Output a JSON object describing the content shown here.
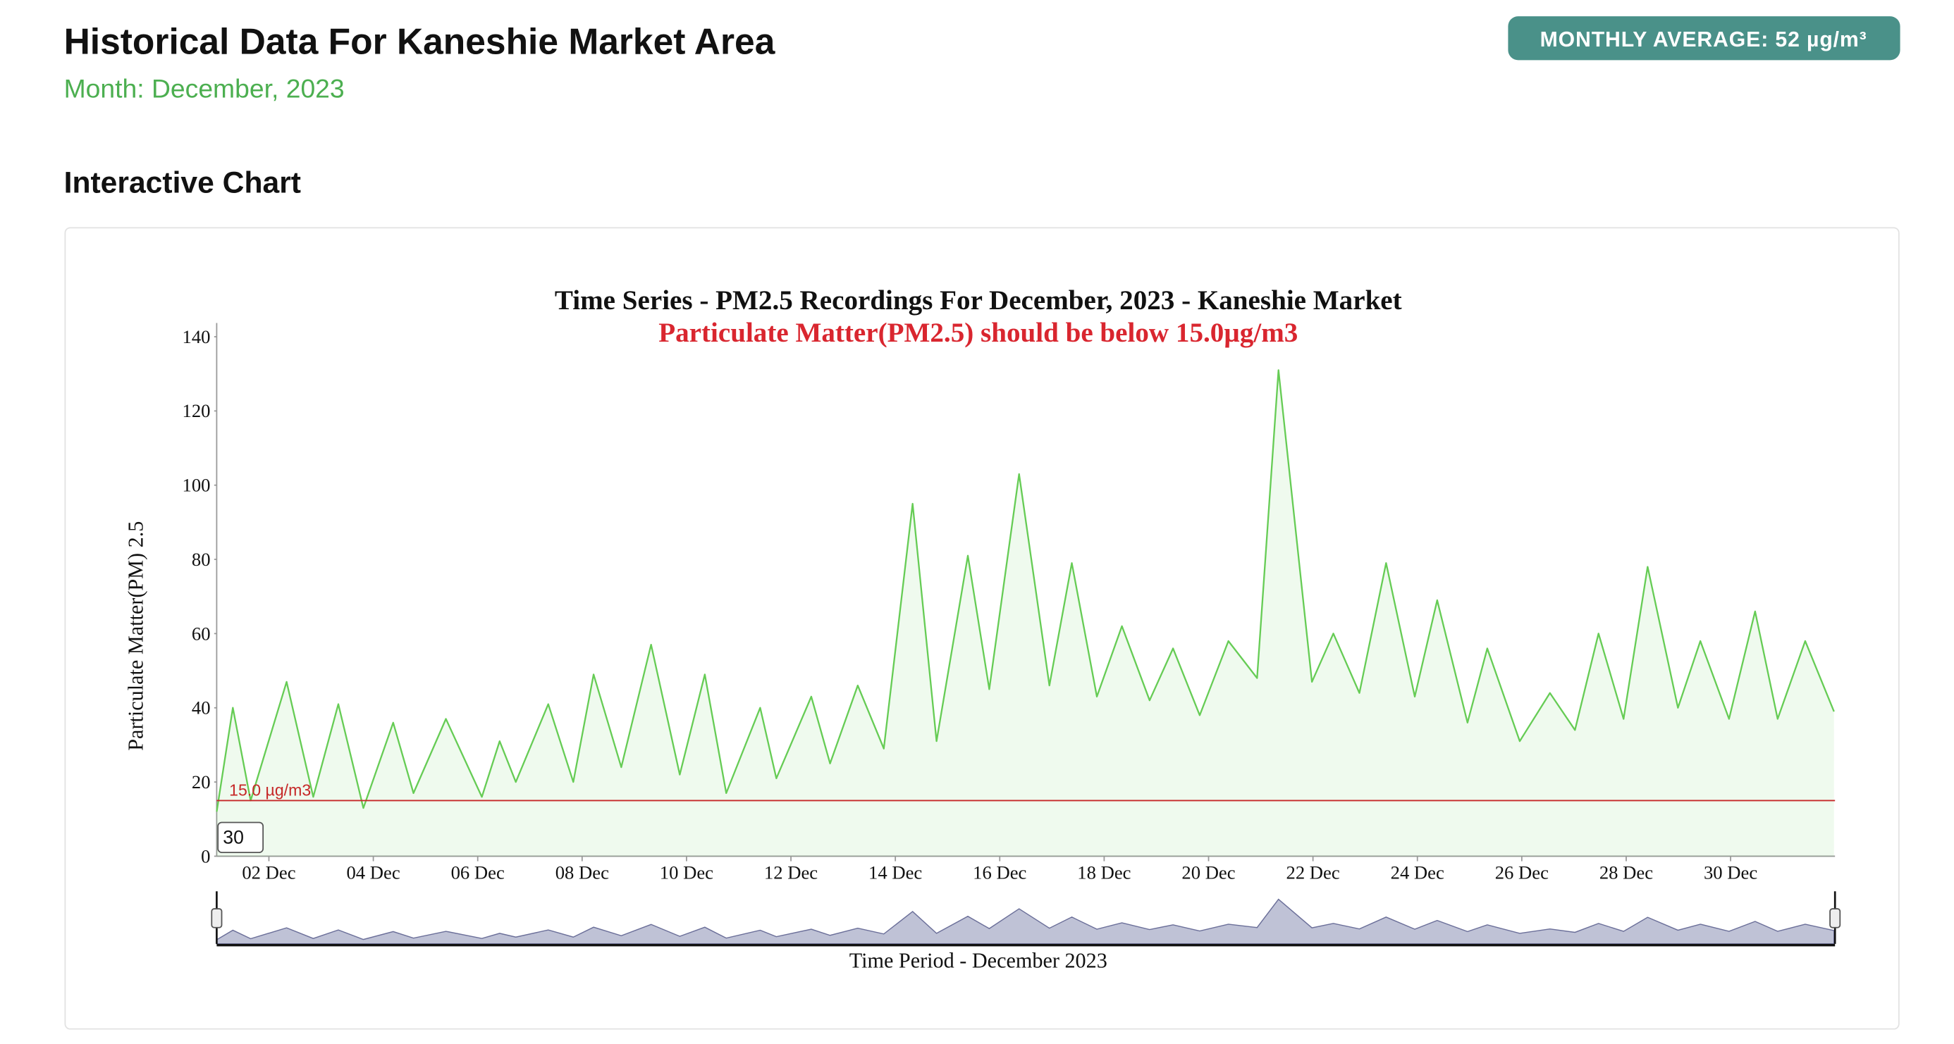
{
  "header": {
    "title": "Historical Data For Kaneshie Market Area",
    "month": "Month: December, 2023",
    "badge": "MONTHLY AVERAGE: 52 µg/m³"
  },
  "section_title": "Interactive Chart",
  "chart_data": {
    "type": "area",
    "title": "Time Series - PM2.5 Recordings For December, 2023 - Kaneshie Market",
    "subtitle": "Particulate Matter(PM2.5) should be below 15.0µg/m3",
    "y_label": "Particulate Matter(PM) 2.5",
    "x_label": "Time Period - December 2023",
    "zoom_input": "30",
    "threshold": {
      "value": 15,
      "label": "15.0 µg/m3",
      "color": "#c62828"
    },
    "color": "#66cc55",
    "x": [
      1.0,
      1.31,
      1.65,
      2.34,
      2.85,
      3.33,
      3.81,
      4.38,
      4.77,
      5.39,
      6.08,
      6.42,
      6.73,
      7.35,
      7.83,
      8.22,
      8.75,
      9.32,
      9.87,
      10.35,
      10.76,
      11.41,
      11.72,
      12.39,
      12.75,
      13.28,
      13.78,
      14.33,
      14.79,
      15.39,
      15.8,
      16.37,
      16.95,
      17.38,
      17.86,
      18.34,
      18.87,
      19.32,
      19.83,
      20.38,
      20.71,
      20.93,
      21.34,
      21.98,
      22.39,
      22.89,
      23.4,
      23.95,
      24.38,
      24.96,
      25.34,
      25.96,
      26.54,
      27.02,
      27.47,
      27.95,
      28.41,
      28.99,
      29.42,
      29.97,
      30.47,
      30.9,
      31.43,
      31.98
    ],
    "values": [
      12,
      40,
      15,
      47,
      16,
      41,
      13,
      36,
      17,
      37,
      16,
      31,
      20,
      41,
      20,
      49,
      24,
      57,
      22,
      49,
      17,
      40,
      21,
      43,
      25,
      46,
      29,
      95,
      31,
      81,
      45,
      103,
      46,
      79,
      43,
      62,
      42,
      56,
      38,
      58,
      52,
      48,
      131,
      47,
      60,
      44,
      79,
      43,
      69,
      36,
      56,
      31,
      44,
      34,
      60,
      37,
      78,
      40,
      58,
      37,
      66,
      37,
      58,
      39
    ],
    "xlim": [
      1,
      32
    ],
    "ylim": [
      0,
      140
    ],
    "yticks": [
      0,
      20,
      40,
      60,
      80,
      100,
      120,
      140
    ],
    "xticks": [
      {
        "value": 2,
        "label": "02 Dec"
      },
      {
        "value": 4,
        "label": "04 Dec"
      },
      {
        "value": 6,
        "label": "06 Dec"
      },
      {
        "value": 8,
        "label": "08 Dec"
      },
      {
        "value": 10,
        "label": "10 Dec"
      },
      {
        "value": 12,
        "label": "12 Dec"
      },
      {
        "value": 14,
        "label": "14 Dec"
      },
      {
        "value": 16,
        "label": "16 Dec"
      },
      {
        "value": 18,
        "label": "18 Dec"
      },
      {
        "value": 20,
        "label": "20 Dec"
      },
      {
        "value": 22,
        "label": "22 Dec"
      },
      {
        "value": 24,
        "label": "24 Dec"
      },
      {
        "value": 26,
        "label": "26 Dec"
      },
      {
        "value": 28,
        "label": "28 Dec"
      },
      {
        "value": 30,
        "label": "30 Dec"
      }
    ]
  }
}
